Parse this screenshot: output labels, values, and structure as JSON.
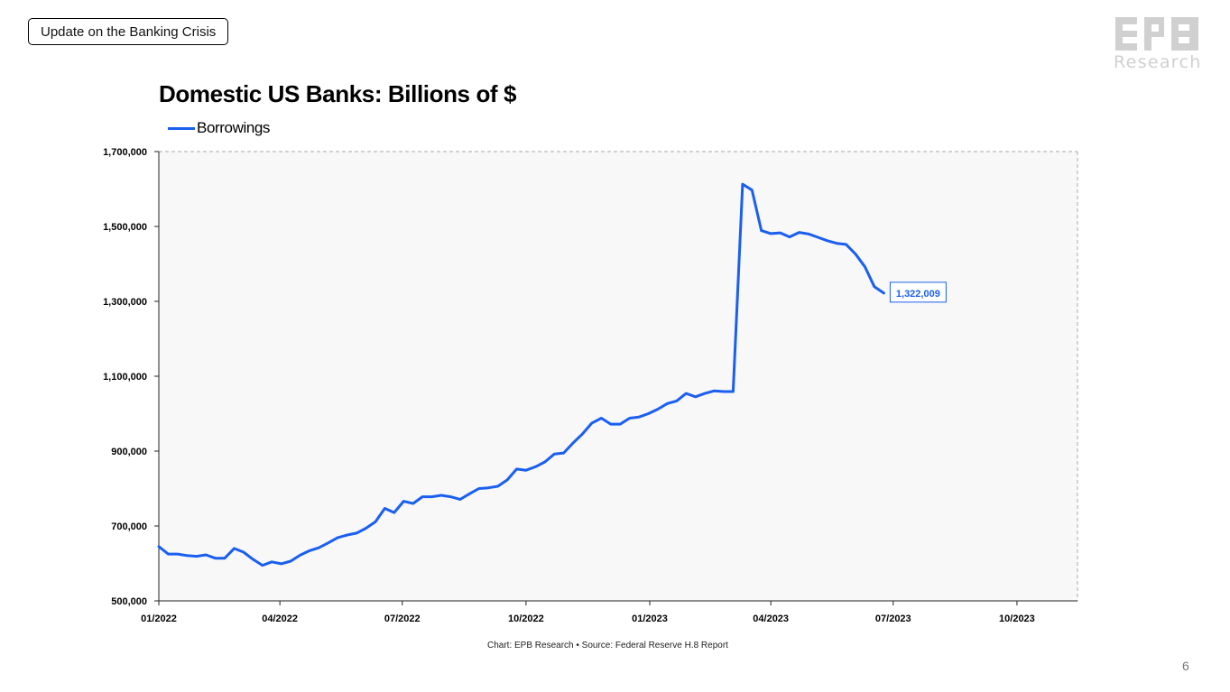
{
  "header": {
    "section_label": "Update on the Banking Crisis"
  },
  "logo": {
    "mark": "EPB",
    "text": "Research"
  },
  "footer": {
    "source": "Chart: EPB Research •  Source: Federal Reserve H.8 Report",
    "page_number": "6"
  },
  "colors": {
    "series": "#1a5ff0",
    "plot_background": "#f8f8f8",
    "logo": "#d0d0d0"
  },
  "chart_data": {
    "type": "line",
    "title": "Domestic US Banks: Billions of $",
    "xlabel": "",
    "ylabel": "",
    "xlim": [
      "2022-01-01",
      "2023-11-15"
    ],
    "ylim": [
      500000,
      1700000
    ],
    "y_ticks": [
      500000,
      700000,
      900000,
      1100000,
      1300000,
      1500000,
      1700000
    ],
    "y_tick_labels": [
      "500,000",
      "700,000",
      "900,000",
      "1,100,000",
      "1,300,000",
      "1,500,000",
      "1,700,000"
    ],
    "x_ticks": [
      "2022-01-01",
      "2022-04-01",
      "2022-07-01",
      "2022-10-01",
      "2023-01-01",
      "2023-04-01",
      "2023-07-01",
      "2023-10-01"
    ],
    "x_tick_labels": [
      "01/2022",
      "04/2022",
      "07/2022",
      "10/2022",
      "01/2023",
      "04/2023",
      "07/2023",
      "10/2023"
    ],
    "grid": false,
    "legend_position": "top-left",
    "last_value_label": "1,322,009",
    "series": [
      {
        "name": "Borrowings",
        "color": "#1a5ff0",
        "x": [
          "2022-01-01",
          "2022-01-08",
          "2022-01-15",
          "2022-01-22",
          "2022-01-29",
          "2022-02-05",
          "2022-02-12",
          "2022-02-19",
          "2022-02-26",
          "2022-03-05",
          "2022-03-12",
          "2022-03-19",
          "2022-03-26",
          "2022-04-02",
          "2022-04-09",
          "2022-04-16",
          "2022-04-23",
          "2022-04-30",
          "2022-05-07",
          "2022-05-14",
          "2022-05-21",
          "2022-05-28",
          "2022-06-04",
          "2022-06-11",
          "2022-06-18",
          "2022-06-25",
          "2022-07-02",
          "2022-07-09",
          "2022-07-16",
          "2022-07-23",
          "2022-07-30",
          "2022-08-06",
          "2022-08-13",
          "2022-08-20",
          "2022-08-27",
          "2022-09-03",
          "2022-09-10",
          "2022-09-17",
          "2022-09-24",
          "2022-10-01",
          "2022-10-08",
          "2022-10-15",
          "2022-10-22",
          "2022-10-29",
          "2022-11-05",
          "2022-11-12",
          "2022-11-19",
          "2022-11-26",
          "2022-12-03",
          "2022-12-10",
          "2022-12-17",
          "2022-12-24",
          "2022-12-31",
          "2023-01-07",
          "2023-01-14",
          "2023-01-21",
          "2023-01-28",
          "2023-02-04",
          "2023-02-11",
          "2023-02-18",
          "2023-02-25",
          "2023-03-04",
          "2023-03-11",
          "2023-03-18",
          "2023-03-25",
          "2023-04-01",
          "2023-04-08",
          "2023-04-15",
          "2023-04-22",
          "2023-04-29",
          "2023-05-06",
          "2023-05-13",
          "2023-05-20",
          "2023-05-27",
          "2023-06-03",
          "2023-06-10",
          "2023-06-17",
          "2023-06-24"
        ],
        "values": [
          645000,
          625000,
          625000,
          621000,
          619000,
          623000,
          614000,
          614000,
          640000,
          630000,
          611000,
          595000,
          604000,
          599000,
          606000,
          622000,
          634000,
          642000,
          655000,
          669000,
          676000,
          681000,
          694000,
          711000,
          747000,
          736000,
          766000,
          760000,
          778000,
          778000,
          782000,
          778000,
          771000,
          786000,
          800000,
          802000,
          806000,
          823000,
          852000,
          849000,
          858000,
          871000,
          892000,
          895000,
          922000,
          946000,
          975000,
          988000,
          972000,
          972000,
          988000,
          991000,
          1000000,
          1012000,
          1027000,
          1034000,
          1054000,
          1045000,
          1054000,
          1061000,
          1059000,
          1059000,
          1613000,
          1597000,
          1489000,
          1481000,
          1483000,
          1472000,
          1484000,
          1480000,
          1471000,
          1462000,
          1455000,
          1452000,
          1426000,
          1392000,
          1339000,
          1322009
        ]
      }
    ]
  }
}
